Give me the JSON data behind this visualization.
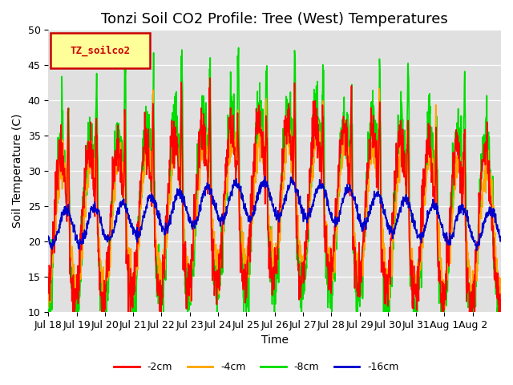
{
  "title": "Tonzi Soil CO2 Profile: Tree (West) Temperatures",
  "xlabel": "Time",
  "ylabel": "Soil Temperature (C)",
  "ylim": [
    10,
    50
  ],
  "bg_color": "#e0e0e0",
  "legend_label": "TZ_soilco2",
  "series_labels": [
    "-2cm",
    "-4cm",
    "-8cm",
    "-16cm"
  ],
  "series_colors": [
    "#ff0000",
    "#ffa500",
    "#00dd00",
    "#0000cc"
  ],
  "xtick_labels": [
    "Jul 18",
    "Jul 19",
    "Jul 20",
    "Jul 21",
    "Jul 22",
    "Jul 23",
    "Jul 24",
    "Jul 25",
    "Jul 26",
    "Jul 27",
    "Jul 28",
    "Jul 29",
    "Jul 30",
    "Jul 31",
    "Aug 1",
    "Aug 2"
  ],
  "ytick_vals": [
    10,
    15,
    20,
    25,
    30,
    35,
    40,
    45,
    50
  ],
  "linewidth": 1.2,
  "title_fontsize": 13,
  "axis_fontsize": 10,
  "tick_fontsize": 9
}
